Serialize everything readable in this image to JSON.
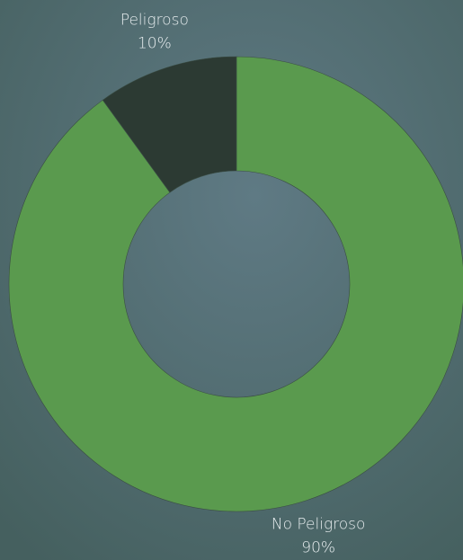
{
  "chart_data": {
    "type": "donut",
    "categories": [
      "No Peligroso",
      "Peligroso"
    ],
    "values": [
      90,
      10
    ],
    "value_labels": [
      "90%",
      "10%"
    ],
    "colors": [
      "#5a9a4e",
      "#2c3a33"
    ]
  }
}
